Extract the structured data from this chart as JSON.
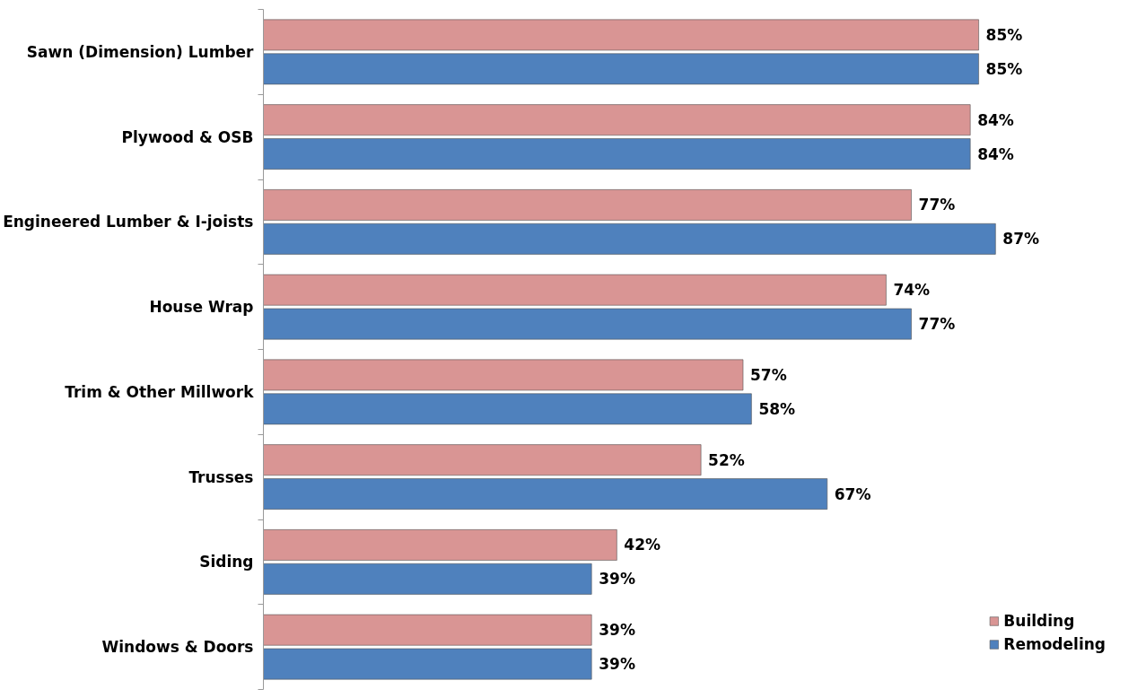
{
  "chart_data": {
    "type": "bar",
    "orientation": "horizontal",
    "categories": [
      "Sawn (Dimension) Lumber",
      "Plywood & OSB",
      "Engineered Lumber & I-joists",
      "House Wrap",
      "Trim & Other Millwork",
      "Trusses",
      "Siding",
      "Windows & Doors"
    ],
    "series": [
      {
        "name": "Building",
        "color": "#d99594",
        "values": [
          85,
          84,
          77,
          74,
          57,
          52,
          42,
          39
        ],
        "value_labels": [
          "85%",
          "84%",
          "77%",
          "74%",
          "57%",
          "52%",
          "42%",
          "39%"
        ]
      },
      {
        "name": "Remodeling",
        "color": "#4f81bd",
        "values": [
          85,
          84,
          87,
          77,
          58,
          67,
          39,
          39
        ],
        "value_labels": [
          "85%",
          "84%",
          "87%",
          "77%",
          "58%",
          "67%",
          "39%",
          "39%"
        ]
      }
    ],
    "legend": "bottom right",
    "grid": false
  }
}
